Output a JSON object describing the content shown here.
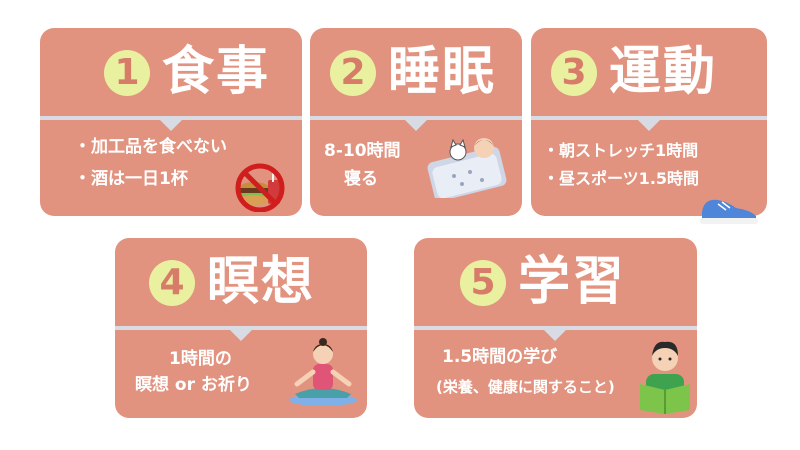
{
  "colors": {
    "card": "#e2937f",
    "number_circle": "#e9f1a0",
    "number_text": "#d77c69",
    "text": "#ffffff",
    "divider": "#d8dbe4"
  },
  "cards": [
    {
      "number": "1",
      "title": "食事",
      "lines": [
        "・加工品を食べない",
        "・酒は一日1杯"
      ],
      "icon": "no-junk-food-icon"
    },
    {
      "number": "2",
      "title": "睡眠",
      "lines": [
        "8-10時間",
        "寝る"
      ],
      "icon": "sleeping-person-cat-icon"
    },
    {
      "number": "3",
      "title": "運動",
      "lines": [
        "・朝ストレッチ1時間",
        "・昼スポーツ1.5時間"
      ],
      "icon": "sneaker-icon"
    },
    {
      "number": "4",
      "title": "瞑想",
      "lines": [
        "1時間の",
        "瞑想 or お祈り"
      ],
      "icon": "meditating-woman-icon"
    },
    {
      "number": "5",
      "title": "学習",
      "lines": [
        "1.5時間の学び",
        "(栄養、健康に関すること)"
      ],
      "icon": "reading-man-icon"
    }
  ]
}
